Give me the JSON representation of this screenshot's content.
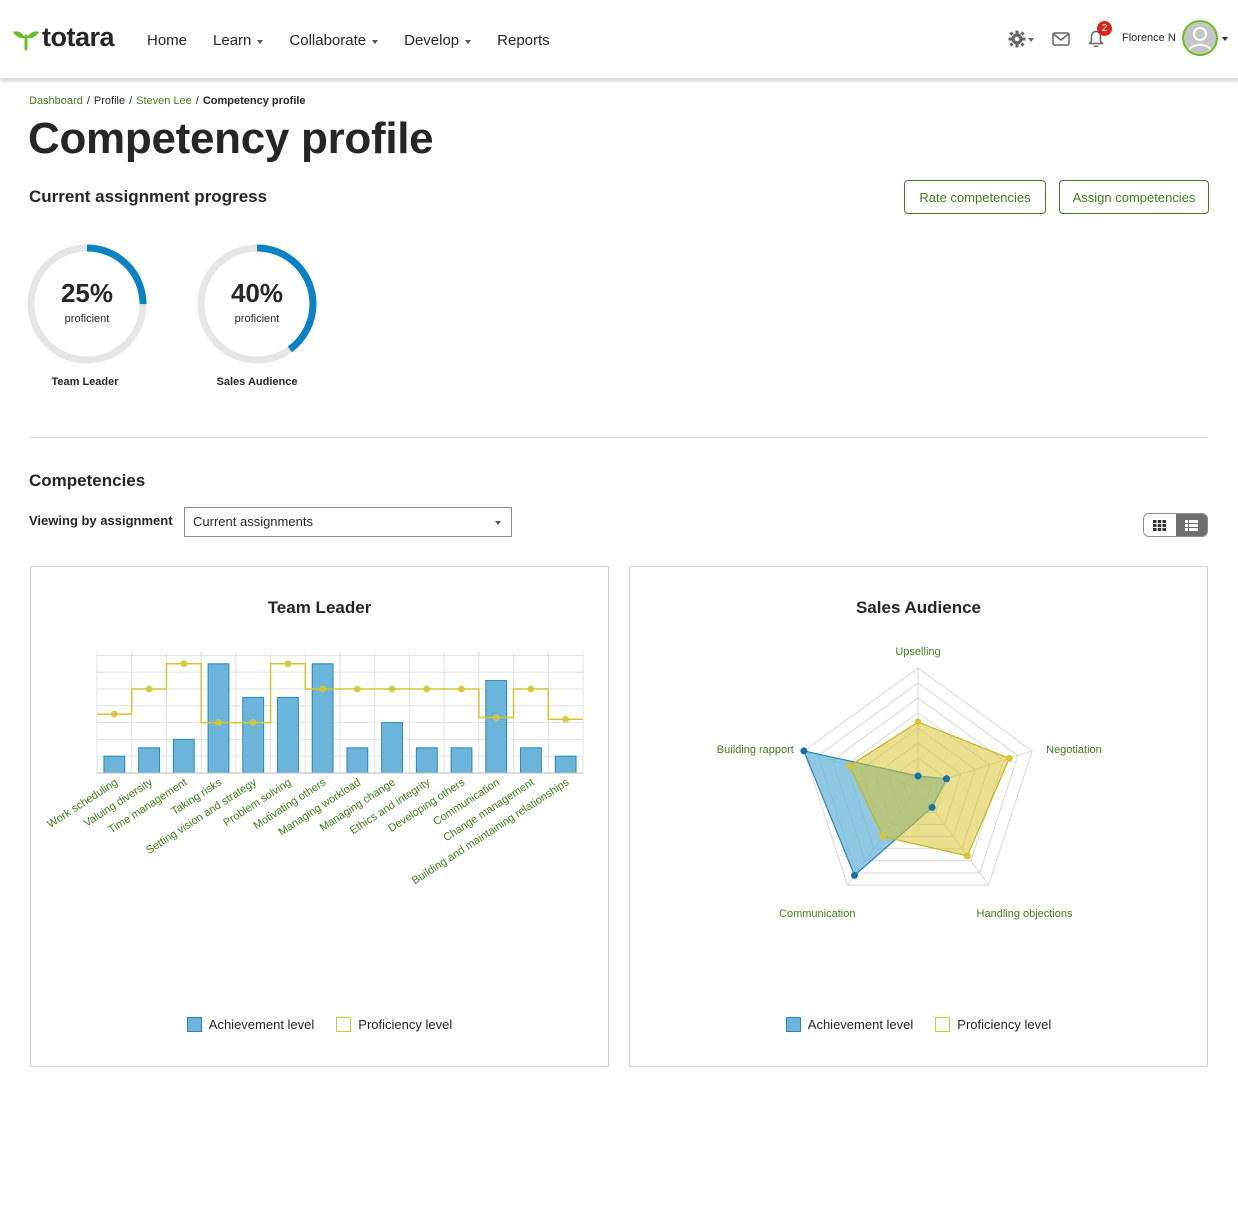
{
  "brand": {
    "name": "totara",
    "accent": "#69bd28",
    "link": "#3f7f1f"
  },
  "nav": {
    "home": "Home",
    "learn": "Learn",
    "collaborate": "Collaborate",
    "develop": "Develop",
    "reports": "Reports"
  },
  "header": {
    "settings_icon": "gear-icon",
    "messages_icon": "envelope-icon",
    "notifications_icon": "bell-icon",
    "notification_count": "2",
    "user_name": "Florence N"
  },
  "breadcrumb": {
    "dashboard": "Dashboard",
    "profile": "Profile",
    "user": "Steven Lee",
    "current": "Competency profile"
  },
  "page": {
    "title": "Competency profile",
    "progress_heading": "Current assignment progress",
    "rate_button": "Rate competencies",
    "assign_button": "Assign competencies",
    "competencies_heading": "Competencies",
    "viewing_label": "Viewing by assignment",
    "viewing_value": "Current assignments"
  },
  "progress": [
    {
      "percent_text": "25%",
      "percent": 25,
      "sub": "proficient",
      "name": "Team Leader"
    },
    {
      "percent_text": "40%",
      "percent": 40,
      "sub": "proficient",
      "name": "Sales Audience"
    }
  ],
  "legend": {
    "achievement": "Achievement level",
    "proficiency": "Proficiency level",
    "achievement_color": "#6ab5d9",
    "proficiency_color": "#d7c531"
  },
  "chart_data": [
    {
      "type": "bar",
      "title": "Team Leader",
      "categories": [
        "Work scheduling",
        "Valuing diversity",
        "Time management",
        "Taking risks",
        "Setting vision and strategy",
        "Problem solving",
        "Motivating others",
        "Managing workload",
        "Managing change",
        "Ethics and integrity",
        "Developing others",
        "Communication",
        "Change management",
        "Building and maintaining relationships"
      ],
      "series": [
        {
          "name": "Achievement level",
          "type": "bar",
          "values": [
            1,
            1.5,
            2,
            6.5,
            4.5,
            4.5,
            6.5,
            1.5,
            3,
            1.5,
            1.5,
            5.5,
            1.5,
            1
          ]
        },
        {
          "name": "Proficiency level",
          "type": "step-line",
          "values": [
            3.5,
            5,
            6.5,
            3,
            3,
            6.5,
            5,
            5,
            5,
            5,
            5,
            3.3,
            5,
            3.2
          ]
        }
      ],
      "ylim": [
        0,
        7.2
      ]
    },
    {
      "type": "radar",
      "title": "Sales Audience",
      "categories": [
        "Upselling",
        "Negotiation",
        "Handling objections",
        "Communication",
        "Building rapport"
      ],
      "series": [
        {
          "name": "Achievement level",
          "values": [
            0.1,
            0.25,
            0.2,
            0.9,
            1.0
          ]
        },
        {
          "name": "Proficiency level",
          "values": [
            0.55,
            0.8,
            0.7,
            0.5,
            0.6
          ]
        }
      ],
      "rlim": [
        0,
        1
      ],
      "rings": 8
    }
  ]
}
